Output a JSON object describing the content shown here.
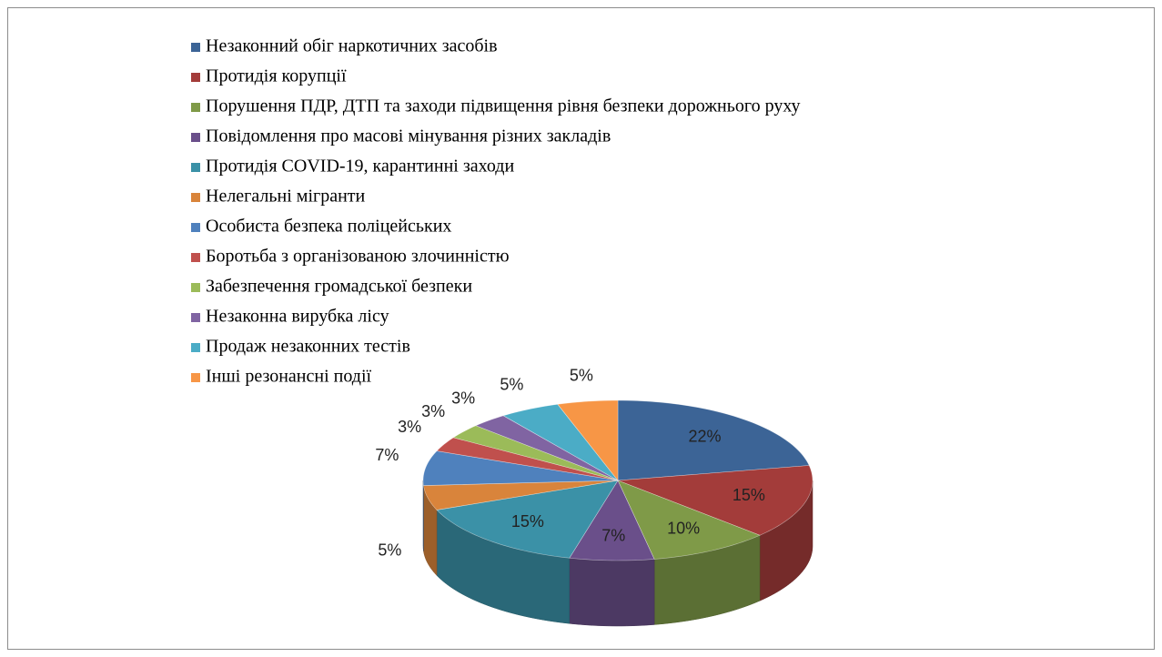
{
  "chart_data": {
    "type": "pie",
    "categories": [
      "Незаконний обіг наркотичних засобів",
      "Протидія корупції",
      "Порушення ПДР, ДТП та заходи підвищення рівня безпеки дорожнього руху",
      "Повідомлення про масові мінування різних закладів",
      "Протидія COVID-19, карантинні заходи",
      "Нелегальні мігранти",
      "Особиста безпека поліцейських",
      "Боротьба з організованою злочинністю",
      "Забезпечення громадської безпеки",
      "Незаконна вирубка лісу",
      "Продаж незаконних тестів",
      "Інші резонансні події"
    ],
    "values": [
      22,
      15,
      10,
      7,
      15,
      5,
      7,
      3,
      3,
      3,
      5,
      5
    ],
    "value_labels": [
      "22%",
      "15%",
      "10%",
      "7%",
      "15%",
      "5%",
      "7%",
      "3%",
      "3%",
      "3%",
      "5%",
      "5%"
    ],
    "colors": [
      "#3c6496",
      "#a33c3a",
      "#7f9a48",
      "#6a4f8a",
      "#3b91a7",
      "#d9843b",
      "#4f81bd",
      "#c0504d",
      "#9bbb59",
      "#8064a2",
      "#4bacc6",
      "#f79646"
    ],
    "legend": "top-left",
    "three_d": true
  }
}
